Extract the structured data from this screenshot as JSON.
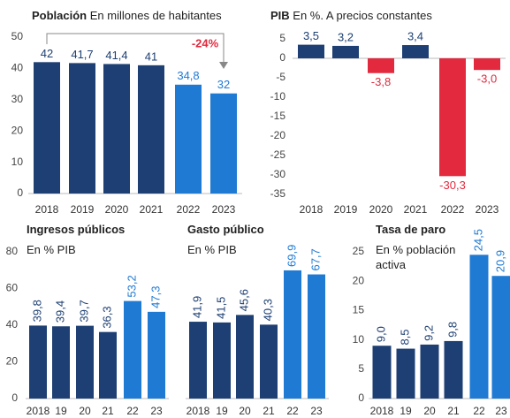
{
  "chart_data": [
    {
      "type": "bar",
      "title": "Población",
      "subtitle": "En millones de habitantes",
      "categories": [
        "2018",
        "2019",
        "2020",
        "2021",
        "2022",
        "2023"
      ],
      "values": [
        42,
        41.7,
        41.4,
        41,
        34.8,
        32
      ],
      "value_labels": [
        "42",
        "41,7",
        "41,4",
        "41",
        "34,8",
        "32"
      ],
      "colors": [
        "#1d3f73",
        "#1d3f73",
        "#1d3f73",
        "#1d3f73",
        "#1f7ad3",
        "#1f7ad3"
      ],
      "ylim": [
        0,
        50
      ],
      "yticks": [
        0,
        10,
        20,
        30,
        40,
        50
      ],
      "annotation": "-24%"
    },
    {
      "type": "bar",
      "title": "PIB",
      "subtitle": "En %. A precios constantes",
      "categories": [
        "2018",
        "2019",
        "2020",
        "2021",
        "2022",
        "2023"
      ],
      "values": [
        3.5,
        3.2,
        -3.8,
        3.4,
        -30.3,
        -3.0
      ],
      "value_labels": [
        "3,5",
        "3,2",
        "-3,8",
        "3,4",
        "-30,3",
        "-3,0"
      ],
      "colors": [
        "#1d3f73",
        "#1d3f73",
        "#e2293e",
        "#1d3f73",
        "#e2293e",
        "#e2293e"
      ],
      "ylim": [
        -35,
        5
      ],
      "yticks": [
        5,
        0,
        -5,
        -10,
        -15,
        -20,
        -25,
        -30,
        -35
      ]
    },
    {
      "type": "bar",
      "title": "Ingresos públicos",
      "subtitle": "En % PIB",
      "categories": [
        "2018",
        "19",
        "20",
        "21",
        "22",
        "23"
      ],
      "values": [
        39.8,
        39.4,
        39.7,
        36.3,
        53.2,
        47.3
      ],
      "value_labels": [
        "39,8",
        "39,4",
        "39,7",
        "36,3",
        "53,2",
        "47,3"
      ],
      "colors": [
        "#1d3f73",
        "#1d3f73",
        "#1d3f73",
        "#1d3f73",
        "#1f7ad3",
        "#1f7ad3"
      ],
      "ylim": [
        0,
        80
      ],
      "yticks": [
        0,
        20,
        40,
        60,
        80
      ]
    },
    {
      "type": "bar",
      "title": "Gasto público",
      "subtitle": "En % PIB",
      "categories": [
        "2018",
        "19",
        "20",
        "21",
        "22",
        "23"
      ],
      "values": [
        41.9,
        41.5,
        45.6,
        40.3,
        69.9,
        67.7
      ],
      "value_labels": [
        "41,9",
        "41,5",
        "45,6",
        "40,3",
        "69,9",
        "67,7"
      ],
      "colors": [
        "#1d3f73",
        "#1d3f73",
        "#1d3f73",
        "#1d3f73",
        "#1f7ad3",
        "#1f7ad3"
      ],
      "ylim": [
        0,
        80
      ]
    },
    {
      "type": "bar",
      "title": "Tasa de paro",
      "subtitle": "En % población activa",
      "categories": [
        "2018",
        "19",
        "20",
        "21",
        "22",
        "23"
      ],
      "values": [
        9.0,
        8.5,
        9.2,
        9.8,
        24.5,
        20.9
      ],
      "value_labels": [
        "9,0",
        "8,5",
        "9,2",
        "9,8",
        "24,5",
        "20,9"
      ],
      "colors": [
        "#1d3f73",
        "#1d3f73",
        "#1d3f73",
        "#1d3f73",
        "#1f7ad3",
        "#1f7ad3"
      ],
      "ylim": [
        0,
        25
      ],
      "yticks": [
        0,
        5,
        10,
        15,
        20,
        25
      ]
    }
  ]
}
